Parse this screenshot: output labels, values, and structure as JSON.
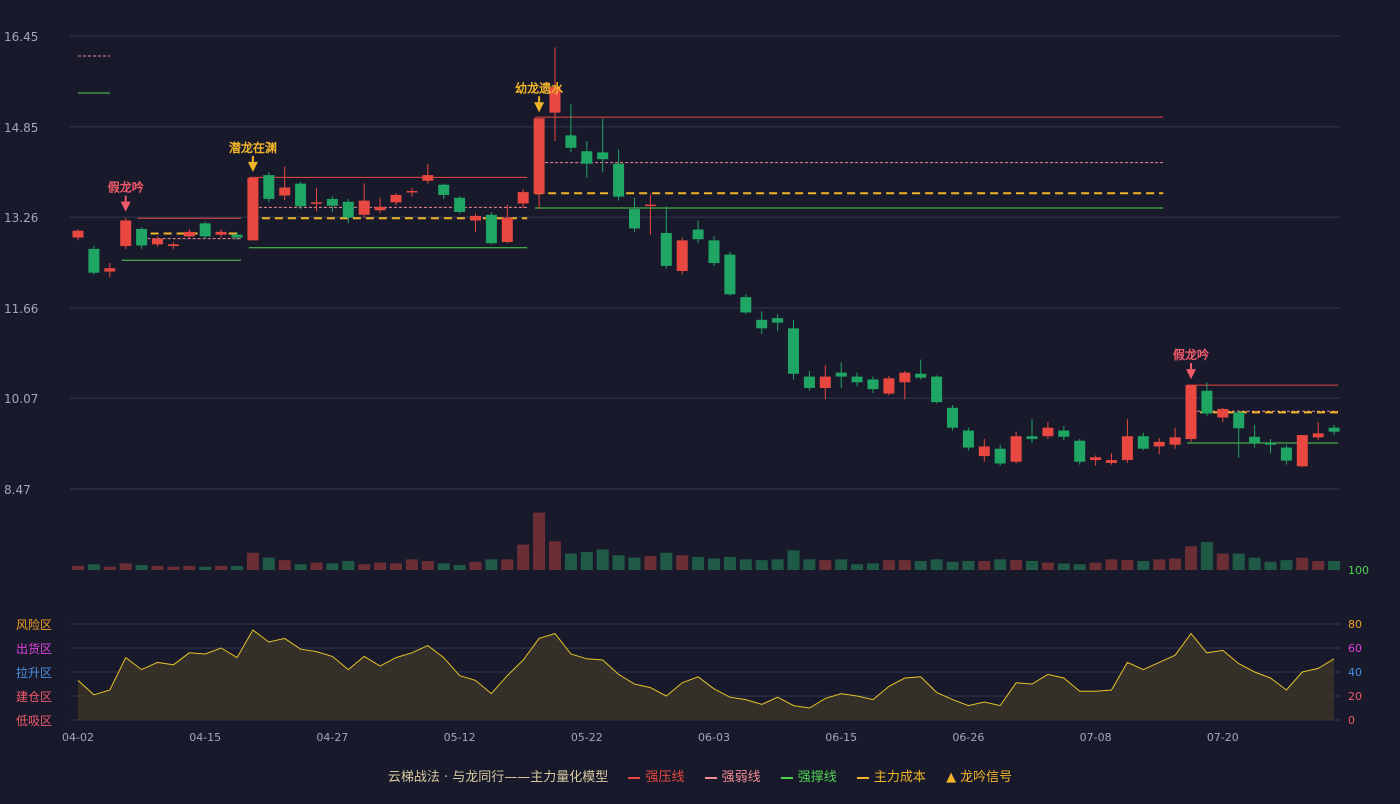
{
  "colors": {
    "background": "#181a2b",
    "up": "#e8483f",
    "down": "#1fa564",
    "up_volume": "#6b2e35",
    "down_volume": "#1f5a46",
    "pressure": "#e8483f",
    "weak": "#f08a94",
    "support": "#4fd14f",
    "cost": "#f0b429",
    "signal": "#f0b429",
    "fake_signal": "#f05a6a",
    "oscillator": "#e6c229",
    "zone_risk": "#f0a020",
    "zone_distribute": "#e040e0",
    "zone_rise": "#4a90e2",
    "zone_build": "#f05a6a",
    "zone_low": "#f05a6a"
  },
  "chart_data": {
    "type": "candlestick",
    "price_axis": {
      "ticks": [
        "16.45",
        "14.85",
        "13.26",
        "11.66",
        "10.07",
        "8.47"
      ],
      "ylim": [
        8.47,
        16.45
      ]
    },
    "x_tick_labels": [
      {
        "index": 0,
        "label": "04-02"
      },
      {
        "index": 8,
        "label": "04-15"
      },
      {
        "index": 16,
        "label": "04-27"
      },
      {
        "index": 24,
        "label": "05-12"
      },
      {
        "index": 32,
        "label": "05-22"
      },
      {
        "index": 40,
        "label": "06-03"
      },
      {
        "index": 48,
        "label": "06-15"
      },
      {
        "index": 56,
        "label": "06-26"
      },
      {
        "index": 64,
        "label": "07-08"
      },
      {
        "index": 72,
        "label": "07-20"
      }
    ],
    "candles": [
      [
        12.9,
        13.02,
        12.85,
        13.05
      ],
      [
        12.7,
        12.28,
        12.25,
        12.75
      ],
      [
        12.3,
        12.36,
        12.2,
        12.45
      ],
      [
        12.75,
        13.2,
        12.7,
        13.25
      ],
      [
        13.05,
        12.76,
        12.7,
        13.08
      ],
      [
        12.78,
        12.88,
        12.74,
        12.92
      ],
      [
        12.75,
        12.78,
        12.7,
        12.82
      ],
      [
        12.92,
        13.0,
        12.88,
        13.05
      ],
      [
        13.15,
        12.92,
        12.88,
        13.18
      ],
      [
        12.95,
        13.0,
        12.9,
        13.05
      ],
      [
        12.95,
        12.9,
        12.86,
        13.0
      ],
      [
        12.85,
        13.95,
        12.85,
        13.95
      ],
      [
        14.0,
        13.58,
        13.52,
        14.05
      ],
      [
        13.64,
        13.78,
        13.56,
        14.15
      ],
      [
        13.85,
        13.45,
        13.4,
        13.88
      ],
      [
        13.5,
        13.52,
        13.36,
        13.78
      ],
      [
        13.58,
        13.46,
        13.35,
        13.63
      ],
      [
        13.53,
        13.25,
        13.15,
        13.58
      ],
      [
        13.3,
        13.55,
        13.25,
        13.85
      ],
      [
        13.38,
        13.44,
        13.33,
        13.6
      ],
      [
        13.52,
        13.65,
        13.47,
        13.68
      ],
      [
        13.7,
        13.72,
        13.62,
        13.78
      ],
      [
        13.9,
        14.0,
        13.85,
        14.2
      ],
      [
        13.83,
        13.65,
        13.58,
        13.85
      ],
      [
        13.6,
        13.35,
        13.32,
        13.63
      ],
      [
        13.2,
        13.28,
        13.0,
        13.32
      ],
      [
        13.3,
        12.8,
        12.78,
        13.35
      ],
      [
        12.82,
        13.25,
        12.8,
        13.48
      ],
      [
        13.5,
        13.7,
        13.42,
        13.75
      ],
      [
        13.67,
        15.0,
        13.4,
        15.0
      ],
      [
        15.1,
        15.55,
        14.6,
        16.25
      ],
      [
        14.7,
        14.48,
        14.4,
        15.25
      ],
      [
        14.42,
        14.2,
        13.95,
        14.6
      ],
      [
        14.4,
        14.28,
        14.05,
        15.0
      ],
      [
        14.2,
        13.62,
        13.55,
        14.45
      ],
      [
        13.4,
        13.06,
        13.0,
        13.6
      ],
      [
        13.48,
        13.48,
        12.95,
        13.66
      ],
      [
        12.98,
        12.4,
        12.35,
        13.45
      ],
      [
        12.31,
        12.85,
        12.25,
        12.9
      ],
      [
        13.04,
        12.87,
        12.8,
        13.2
      ],
      [
        12.85,
        12.45,
        12.4,
        12.92
      ],
      [
        12.6,
        11.9,
        11.88,
        12.65
      ],
      [
        11.85,
        11.58,
        11.55,
        11.9
      ],
      [
        11.45,
        11.3,
        11.2,
        11.6
      ],
      [
        11.48,
        11.4,
        11.25,
        11.55
      ],
      [
        11.3,
        10.5,
        10.4,
        11.45
      ],
      [
        10.45,
        10.25,
        10.2,
        10.55
      ],
      [
        10.25,
        10.45,
        10.05,
        10.65
      ],
      [
        10.52,
        10.45,
        10.25,
        10.7
      ],
      [
        10.45,
        10.35,
        10.28,
        10.52
      ],
      [
        10.4,
        10.23,
        10.16,
        10.45
      ],
      [
        10.15,
        10.42,
        10.12,
        10.46
      ],
      [
        10.35,
        10.52,
        10.05,
        10.55
      ],
      [
        10.5,
        10.43,
        10.4,
        10.75
      ],
      [
        10.45,
        10.0,
        9.98,
        10.47
      ],
      [
        9.9,
        9.55,
        9.5,
        9.95
      ],
      [
        9.5,
        9.2,
        9.15,
        9.55
      ],
      [
        9.05,
        9.22,
        8.95,
        9.35
      ],
      [
        9.18,
        8.92,
        8.88,
        9.25
      ],
      [
        8.95,
        9.4,
        8.92,
        9.48
      ],
      [
        9.4,
        9.35,
        9.28,
        9.7
      ],
      [
        9.4,
        9.55,
        9.35,
        9.65
      ],
      [
        9.5,
        9.39,
        9.33,
        9.58
      ],
      [
        9.32,
        8.95,
        8.9,
        9.35
      ],
      [
        8.98,
        9.03,
        8.88,
        9.06
      ],
      [
        8.93,
        8.98,
        8.9,
        9.1
      ],
      [
        8.98,
        9.4,
        8.93,
        9.7
      ],
      [
        9.4,
        9.18,
        9.15,
        9.46
      ],
      [
        9.22,
        9.3,
        9.08,
        9.37
      ],
      [
        9.25,
        9.38,
        9.18,
        9.55
      ],
      [
        9.35,
        10.3,
        9.3,
        10.3
      ],
      [
        10.2,
        9.8,
        9.75,
        10.35
      ],
      [
        9.73,
        9.88,
        9.65,
        9.9
      ],
      [
        9.82,
        9.54,
        9.02,
        9.85
      ],
      [
        9.39,
        9.28,
        9.2,
        9.6
      ],
      [
        9.28,
        9.25,
        9.1,
        9.35
      ],
      [
        9.2,
        8.97,
        8.9,
        9.25
      ],
      [
        8.87,
        9.42,
        8.85,
        9.42
      ],
      [
        9.38,
        9.45,
        9.34,
        9.65
      ],
      [
        9.55,
        9.48,
        9.42,
        9.6
      ]
    ],
    "volume": {
      "ymax": 100,
      "values": [
        5,
        7,
        4,
        8,
        6,
        5,
        4,
        5,
        4,
        5,
        5,
        21,
        15,
        12,
        7,
        9,
        8,
        11,
        7,
        9,
        8,
        13,
        11,
        8,
        6,
        10,
        13,
        13,
        31,
        70,
        35,
        20,
        22,
        25,
        18,
        15,
        17,
        21,
        18,
        16,
        14,
        16,
        13,
        12,
        13,
        24,
        13,
        12,
        13,
        7,
        8,
        12,
        12,
        11,
        13,
        10,
        11,
        11,
        13,
        12,
        11,
        9,
        8,
        7,
        9,
        13,
        12,
        11,
        13,
        14,
        29,
        34,
        20,
        20,
        15,
        10,
        12,
        15,
        11,
        11
      ],
      "axis_label": "100"
    },
    "levels": [
      {
        "name": "强压线",
        "from": 4,
        "to": 10,
        "value": 13.24,
        "style": "pressure"
      },
      {
        "name": "强弱线",
        "from": 4,
        "to": 10,
        "value": 12.88,
        "style": "weak"
      },
      {
        "name": "主力成本",
        "from": 4,
        "to": 10,
        "value": 12.97,
        "style": "cost"
      },
      {
        "name": "强撑线",
        "from": 3,
        "to": 10,
        "value": 12.5,
        "style": "support"
      },
      {
        "name": "强压线",
        "from": 11,
        "to": 28,
        "value": 13.96,
        "style": "pressure"
      },
      {
        "name": "强弱线",
        "from": 11,
        "to": 28,
        "value": 13.43,
        "style": "weak"
      },
      {
        "name": "主力成本",
        "from": 11,
        "to": 28,
        "value": 13.24,
        "style": "cost"
      },
      {
        "name": "强撑线",
        "from": 11,
        "to": 28,
        "value": 12.72,
        "style": "support"
      },
      {
        "name": "强压线",
        "from": 29,
        "to": 68,
        "value": 15.02,
        "style": "pressure"
      },
      {
        "name": "强弱线",
        "from": 29,
        "to": 68,
        "value": 14.22,
        "style": "weak"
      },
      {
        "name": "主力成本",
        "from": 29,
        "to": 68,
        "value": 13.68,
        "style": "cost"
      },
      {
        "name": "强撑线",
        "from": 29,
        "to": 68,
        "value": 13.42,
        "style": "support"
      },
      {
        "name": "强压线",
        "from": 70,
        "to": 79,
        "value": 10.3,
        "style": "pressure"
      },
      {
        "name": "强弱线",
        "from": 70,
        "to": 79,
        "value": 9.84,
        "style": "weak"
      },
      {
        "name": "主力成本",
        "from": 70,
        "to": 79,
        "value": 9.82,
        "style": "cost"
      },
      {
        "name": "强撑线",
        "from": 70,
        "to": 79,
        "value": 9.28,
        "style": "support"
      }
    ],
    "signals": [
      {
        "index": 3,
        "label": "假龙吟",
        "kind": "fake"
      },
      {
        "index": 11,
        "label": "潜龙在渊",
        "kind": "real"
      },
      {
        "index": 29,
        "label": "幼龙遗水",
        "kind": "real"
      },
      {
        "index": 70,
        "label": "假龙吟",
        "kind": "fake"
      }
    ],
    "oscillator": {
      "ylim": [
        0,
        100
      ],
      "ticks": [
        "80",
        "60",
        "40",
        "20",
        "0"
      ],
      "zones": [
        "风险区",
        "出货区",
        "拉升区",
        "建仓区",
        "低吸区"
      ],
      "values": [
        33,
        21,
        25,
        52,
        42,
        48,
        46,
        56,
        55,
        60,
        52,
        75,
        65,
        68,
        59,
        57,
        53,
        42,
        53,
        45,
        52,
        56,
        62,
        52,
        37,
        33,
        22,
        37,
        50,
        68,
        72,
        55,
        51,
        50,
        38,
        30,
        27,
        20,
        31,
        36,
        26,
        19,
        17,
        13,
        19,
        12,
        10,
        18,
        22,
        20,
        17,
        28,
        35,
        36,
        23,
        17,
        12,
        15,
        12,
        31,
        30,
        38,
        35,
        24,
        24,
        25,
        48,
        42,
        48,
        54,
        72,
        56,
        58,
        47,
        40,
        35,
        25,
        40,
        43,
        51
      ]
    },
    "legend": {
      "title": "云梯战法 · 与龙同行——主力量化模型",
      "items": [
        {
          "label": "强压线",
          "style": "pressure"
        },
        {
          "label": "强弱线",
          "style": "weak"
        },
        {
          "label": "强撑线",
          "style": "support"
        },
        {
          "label": "主力成本",
          "style": "cost"
        },
        {
          "label": "龙吟信号",
          "style": "signal"
        }
      ]
    }
  }
}
